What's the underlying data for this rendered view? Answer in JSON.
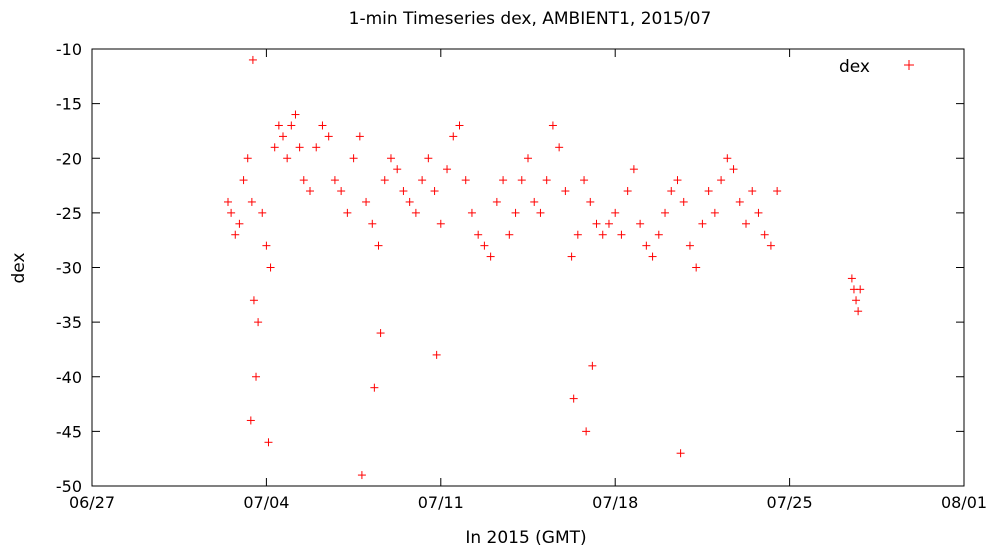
{
  "chart_data": {
    "type": "scatter",
    "title": "1-min Timeseries dex, AMBIENT1, 2015/07",
    "xlabel": "In 2015 (GMT)",
    "ylabel": "dex",
    "x_unit": "days",
    "xlim": [
      "2015-06-27",
      "2015-08-01"
    ],
    "ylim": [
      -50,
      -10
    ],
    "x_ticks": [
      "06/27",
      "07/04",
      "07/11",
      "07/18",
      "07/25",
      "08/01"
    ],
    "y_ticks": [
      -10,
      -15,
      -20,
      -25,
      -30,
      -35,
      -40,
      -45,
      -50
    ],
    "grid": false,
    "legend_position": "top-right",
    "marker": "+",
    "colors": {
      "series": "#ff0000",
      "axis": "#000000",
      "background": "#ffffff"
    },
    "series": [
      {
        "name": "dex",
        "x": [
          "2015-07-02 11:00",
          "2015-07-02 14:00",
          "2015-07-02 18:00",
          "2015-07-02 22:00",
          "2015-07-03 02:00",
          "2015-07-03 06:00",
          "2015-07-03 10:00",
          "2015-07-03 12:00",
          "2015-07-03 16:00",
          "2015-07-03 20:00",
          "2015-07-04 00:00",
          "2015-07-04 04:00",
          "2015-07-04 08:00",
          "2015-07-04 12:00",
          "2015-07-04 16:00",
          "2015-07-04 20:00",
          "2015-07-05 00:00",
          "2015-07-05 04:00",
          "2015-07-05 08:00",
          "2015-07-05 12:00",
          "2015-07-05 18:00",
          "2015-07-06 00:00",
          "2015-07-06 06:00",
          "2015-07-06 12:00",
          "2015-07-06 18:00",
          "2015-07-07 00:00",
          "2015-07-07 06:00",
          "2015-07-07 12:00",
          "2015-07-07 18:00",
          "2015-07-08 00:00",
          "2015-07-08 06:00",
          "2015-07-08 12:00",
          "2015-07-08 18:00",
          "2015-07-09 00:00",
          "2015-07-09 06:00",
          "2015-07-09 12:00",
          "2015-07-09 18:00",
          "2015-07-10 00:00",
          "2015-07-10 06:00",
          "2015-07-10 12:00",
          "2015-07-10 18:00",
          "2015-07-11 00:00",
          "2015-07-11 06:00",
          "2015-07-11 12:00",
          "2015-07-11 18:00",
          "2015-07-12 00:00",
          "2015-07-12 06:00",
          "2015-07-12 12:00",
          "2015-07-12 18:00",
          "2015-07-13 00:00",
          "2015-07-13 06:00",
          "2015-07-13 12:00",
          "2015-07-13 18:00",
          "2015-07-14 00:00",
          "2015-07-14 06:00",
          "2015-07-14 12:00",
          "2015-07-14 18:00",
          "2015-07-15 00:00",
          "2015-07-15 06:00",
          "2015-07-15 12:00",
          "2015-07-15 18:00",
          "2015-07-16 00:00",
          "2015-07-16 06:00",
          "2015-07-16 12:00",
          "2015-07-16 18:00",
          "2015-07-17 00:00",
          "2015-07-17 06:00",
          "2015-07-17 12:00",
          "2015-07-17 18:00",
          "2015-07-18 00:00",
          "2015-07-18 06:00",
          "2015-07-18 12:00",
          "2015-07-18 18:00",
          "2015-07-19 00:00",
          "2015-07-19 06:00",
          "2015-07-19 12:00",
          "2015-07-19 18:00",
          "2015-07-20 00:00",
          "2015-07-20 06:00",
          "2015-07-20 12:00",
          "2015-07-20 18:00",
          "2015-07-21 00:00",
          "2015-07-21 06:00",
          "2015-07-21 12:00",
          "2015-07-21 18:00",
          "2015-07-22 00:00",
          "2015-07-22 06:00",
          "2015-07-22 12:00",
          "2015-07-22 18:00",
          "2015-07-23 00:00",
          "2015-07-23 06:00",
          "2015-07-23 12:00",
          "2015-07-23 18:00",
          "2015-07-24 00:00",
          "2015-07-24 06:00",
          "2015-07-24 12:00",
          "2015-07-27 12:00",
          "2015-07-27 14:00",
          "2015-07-27 16:00",
          "2015-07-27 18:00",
          "2015-07-27 20:00",
          "2015-07-03 09:00",
          "2015-07-03 14:00",
          "2015-07-04 02:00",
          "2015-07-08 08:00",
          "2015-07-08 14:00",
          "2015-07-10 20:00",
          "2015-07-16 08:00",
          "2015-07-16 20:00",
          "2015-07-17 02:00",
          "2015-07-03 11:00",
          "2015-07-07 20:00",
          "2015-07-20 15:00"
        ],
        "y": [
          -24,
          -25,
          -27,
          -26,
          -22,
          -20,
          -24,
          -33,
          -35,
          -25,
          -28,
          -30,
          -19,
          -17,
          -18,
          -20,
          -17,
          -16,
          -19,
          -22,
          -23,
          -19,
          -17,
          -18,
          -22,
          -23,
          -25,
          -20,
          -18,
          -24,
          -26,
          -28,
          -22,
          -20,
          -21,
          -23,
          -24,
          -25,
          -22,
          -20,
          -23,
          -26,
          -21,
          -18,
          -17,
          -22,
          -25,
          -27,
          -28,
          -29,
          -24,
          -22,
          -27,
          -25,
          -22,
          -20,
          -24,
          -25,
          -22,
          -17,
          -19,
          -23,
          -29,
          -27,
          -22,
          -24,
          -26,
          -27,
          -26,
          -25,
          -27,
          -23,
          -21,
          -26,
          -28,
          -29,
          -27,
          -25,
          -23,
          -22,
          -24,
          -28,
          -30,
          -26,
          -23,
          -25,
          -22,
          -20,
          -21,
          -24,
          -26,
          -23,
          -25,
          -27,
          -28,
          -23,
          -31,
          -32,
          -33,
          -34,
          -32,
          -44,
          -40,
          -46,
          -41,
          -36,
          -38,
          -42,
          -45,
          -39,
          -11,
          -49,
          -47
        ]
      }
    ]
  }
}
